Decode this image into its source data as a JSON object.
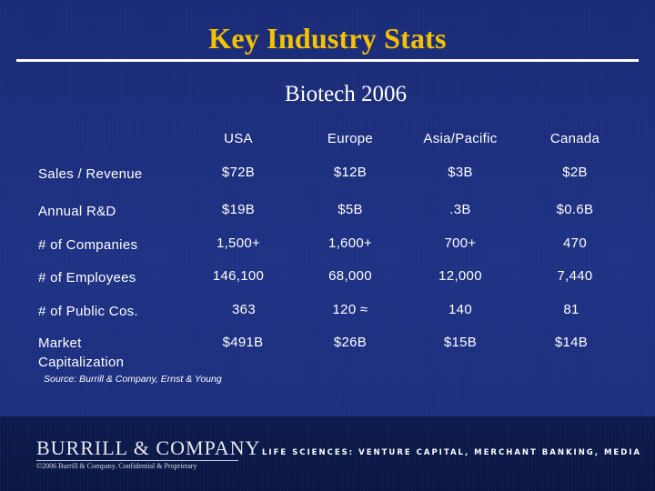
{
  "title": "Key Industry Stats",
  "subtitle": "Biotech 2006",
  "columns": [
    "USA",
    "Europe",
    "Asia/Pacific",
    "Canada"
  ],
  "rows": [
    {
      "label": "Sales / Revenue",
      "values": [
        "$72B",
        "$12B",
        "$3B",
        "$2B"
      ]
    },
    {
      "label": "Annual R&D",
      "values": [
        "$19B",
        "$5B",
        ".3B",
        "$0.6B"
      ]
    },
    {
      "label": "# of Companies",
      "values": [
        "1,500+",
        "1,600+",
        "700+",
        "470"
      ]
    },
    {
      "label": "# of Employees",
      "values": [
        "146,100",
        "68,000",
        "12,000",
        "7,440"
      ]
    },
    {
      "label": "# of Public Cos.",
      "values": [
        "363",
        "120 ≈",
        "140",
        "81"
      ]
    },
    {
      "label": "Market Capitalization",
      "values": [
        "$491B",
        "$26B",
        "$15B",
        "$14B"
      ]
    }
  ],
  "source": "Source: Burrill & Company, Ernst & Young",
  "footer": {
    "logo": "BURRILL & COMPANY",
    "copyright": "©2006 Burrill & Company. Confidential & Proprietary",
    "tagline": "LIFE SCIENCES: VENTURE CAPITAL, MERCHANT BANKING, MEDIA"
  }
}
